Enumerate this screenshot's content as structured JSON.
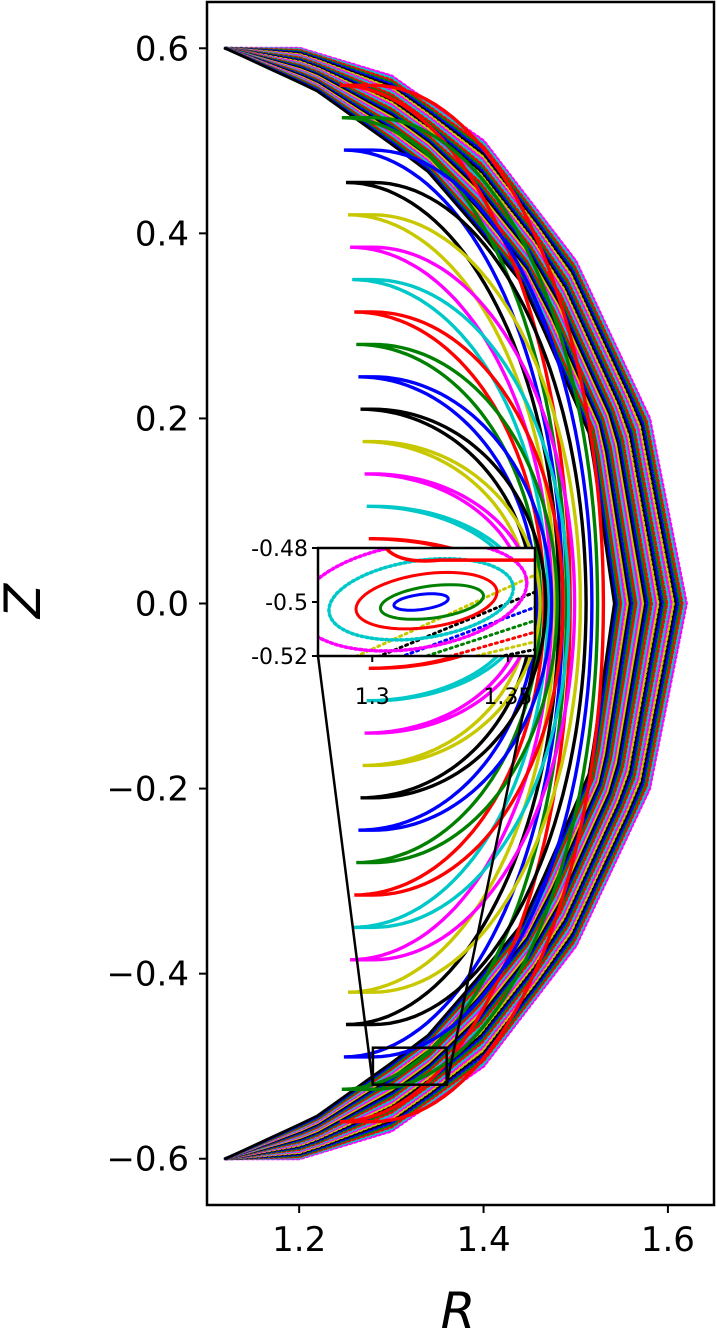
{
  "chart_data": {
    "type": "scatter",
    "title": "",
    "xlabel": "R",
    "ylabel": "Z",
    "xlim": [
      1.1,
      1.65
    ],
    "ylim": [
      -0.65,
      0.65
    ],
    "x_ticks": [
      1.2,
      1.4,
      1.6
    ],
    "x_tick_labels": [
      "1.2",
      "1.4",
      "1.6"
    ],
    "y_ticks": [
      0.6,
      0.4,
      0.2,
      0.0,
      -0.2,
      -0.4,
      -0.6
    ],
    "y_tick_labels": [
      "0.6",
      "0.4",
      "0.2",
      "0.0",
      "−0.2",
      "−0.4",
      "−0.6"
    ],
    "grid": false,
    "legend": "none",
    "description_of_marks": "Poincare-section surfaces drawn as nested coloured dotted contours inside a crescent-shaped boundary.",
    "crescent": {
      "outer_edge": [
        [
          1.12,
          0.6
        ],
        [
          1.2,
          0.6
        ],
        [
          1.3,
          0.57
        ],
        [
          1.4,
          0.5
        ],
        [
          1.5,
          0.37
        ],
        [
          1.58,
          0.2
        ],
        [
          1.62,
          0.0
        ],
        [
          1.58,
          -0.2
        ],
        [
          1.5,
          -0.37
        ],
        [
          1.4,
          -0.5
        ],
        [
          1.3,
          -0.57
        ],
        [
          1.2,
          -0.6
        ],
        [
          1.12,
          -0.6
        ]
      ],
      "inner_edge": [
        [
          1.12,
          0.6
        ],
        [
          1.22,
          0.55
        ],
        [
          1.34,
          0.46
        ],
        [
          1.44,
          0.34
        ],
        [
          1.51,
          0.18
        ],
        [
          1.535,
          0.0
        ],
        [
          1.51,
          -0.18
        ],
        [
          1.44,
          -0.34
        ],
        [
          1.34,
          -0.46
        ],
        [
          1.22,
          -0.55
        ],
        [
          1.12,
          -0.6
        ]
      ],
      "colors": [
        "#ff00ff",
        "#00c8c8",
        "#ff0000",
        "#008000",
        "#0000ff",
        "#000000",
        "#c8c800"
      ]
    },
    "inset": {
      "xlim": [
        1.28,
        1.36
      ],
      "ylim": [
        -0.52,
        -0.48
      ],
      "x_tick_labels": [
        "1.3",
        "1.35"
      ],
      "x_ticks": [
        1.3,
        1.35
      ],
      "y_tick_labels": [
        "-0.48",
        "-0.5",
        "-0.52"
      ],
      "y_ticks": [
        -0.48,
        -0.5,
        -0.52
      ],
      "zoom_box": {
        "x": [
          1.28,
          1.36
        ],
        "y": [
          -0.52,
          -0.48
        ]
      }
    }
  }
}
